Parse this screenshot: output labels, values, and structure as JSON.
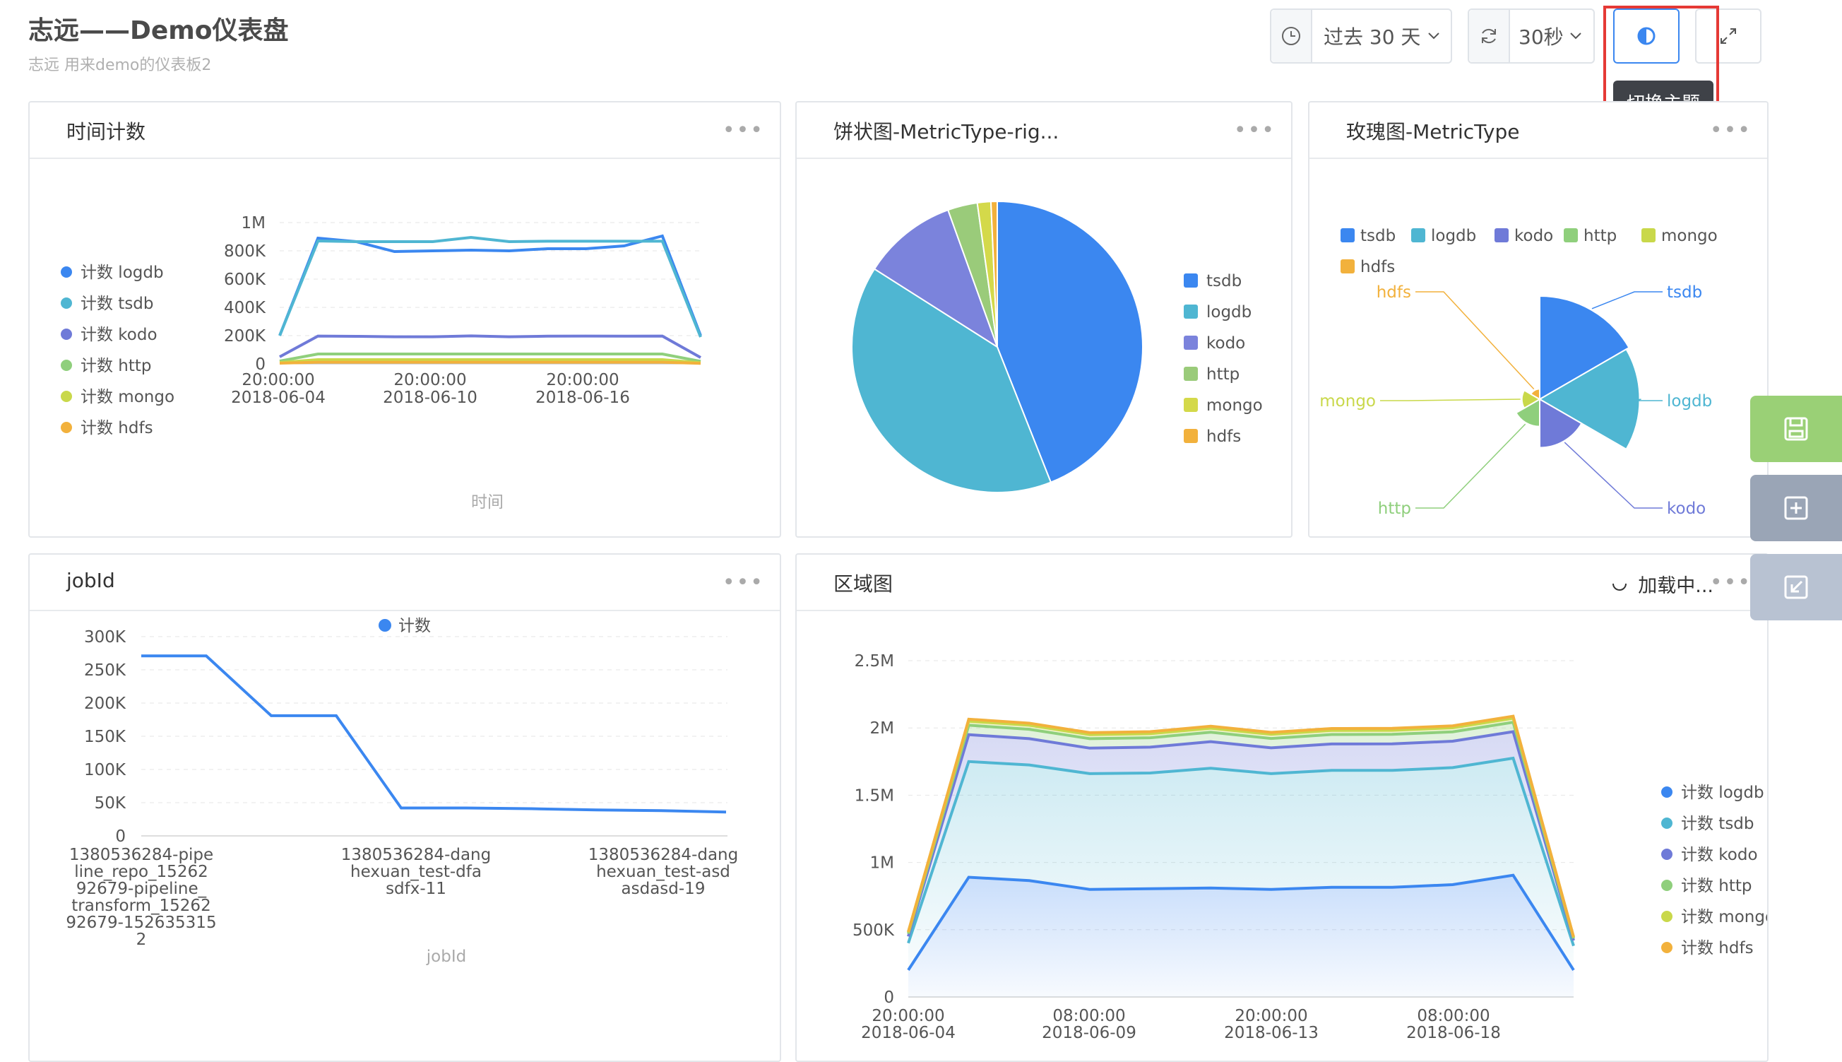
{
  "page": {
    "title": "志远——Demo仪表盘",
    "subtitle": "志远 用来demo的仪表板2"
  },
  "toolbar": {
    "time_range": "过去 30 天",
    "refresh": "30秒",
    "tooltip": "切换主题"
  },
  "cards": {
    "time_count": {
      "title": "时间计数",
      "xlabel": "时间"
    },
    "pie": {
      "title": "饼状图-MetricType-rig..."
    },
    "rose": {
      "title": "玫瑰图-MetricType"
    },
    "jobid": {
      "title": "jobId",
      "xlabel": "jobId"
    },
    "area": {
      "title": "区域图",
      "loading": "加载中..."
    }
  },
  "chart_data": [
    {
      "type": "line",
      "title": "时间计数",
      "xlabel": "时间",
      "x_ticks": [
        "20:00:00\n2018-06-04",
        "20:00:00\n2018-06-10",
        "20:00:00\n2018-06-16"
      ],
      "y_ticks": [
        "0",
        "200K",
        "400K",
        "600K",
        "800K",
        "1M"
      ],
      "ylim": [
        0,
        1000000
      ],
      "grid": true,
      "legend_position": "left",
      "series": [
        {
          "name": "计数 logdb",
          "color": "#3b87f0",
          "values": [
            200000,
            890000,
            865000,
            795000,
            800000,
            805000,
            800000,
            815000,
            815000,
            835000,
            905000,
            200000
          ]
        },
        {
          "name": "计数 tsdb",
          "color": "#4fb6d2",
          "values": [
            200000,
            870000,
            865000,
            865000,
            865000,
            895000,
            865000,
            868000,
            868000,
            868000,
            868000,
            190000
          ]
        },
        {
          "name": "计数 kodo",
          "color": "#6f7ad8",
          "values": [
            50000,
            197000,
            195000,
            192000,
            192000,
            198000,
            192000,
            196000,
            197000,
            196000,
            197000,
            45000
          ]
        },
        {
          "name": "计数 http",
          "color": "#8fcf7c",
          "values": [
            20000,
            70000,
            70000,
            70000,
            70000,
            70000,
            70000,
            70000,
            70000,
            70000,
            70000,
            18000
          ]
        },
        {
          "name": "计数 mongo",
          "color": "#c9d84a",
          "values": [
            10000,
            30000,
            30000,
            30000,
            30000,
            30000,
            30000,
            30000,
            30000,
            30000,
            30000,
            8000
          ]
        },
        {
          "name": "计数 hdfs",
          "color": "#f2b13c",
          "values": [
            5000,
            12000,
            12000,
            12000,
            12000,
            12000,
            12000,
            12000,
            12000,
            12000,
            12000,
            4000
          ]
        }
      ]
    },
    {
      "type": "pie",
      "title": "饼状图-MetricType-rig...",
      "legend_position": "right",
      "slices": [
        {
          "name": "tsdb",
          "value": 44,
          "color": "#3b87f0"
        },
        {
          "name": "logdb",
          "value": 40,
          "color": "#4fb6d2"
        },
        {
          "name": "kodo",
          "value": 10.5,
          "color": "#7b83dc"
        },
        {
          "name": "http",
          "value": 3.3,
          "color": "#9acb7a"
        },
        {
          "name": "mongo",
          "value": 1.5,
          "color": "#d4d94a"
        },
        {
          "name": "hdfs",
          "value": 0.7,
          "color": "#f2b13c"
        }
      ]
    },
    {
      "type": "pie",
      "title": "玫瑰图-MetricType",
      "rose": true,
      "legend_position": "top",
      "slices": [
        {
          "name": "tsdb",
          "value": 100,
          "color": "#3b87f0"
        },
        {
          "name": "logdb",
          "value": 94,
          "color": "#4fb6d2"
        },
        {
          "name": "kodo",
          "value": 22,
          "color": "#6f7ad8"
        },
        {
          "name": "http",
          "value": 7,
          "color": "#8fcf7c"
        },
        {
          "name": "mongo",
          "value": 3,
          "color": "#c9d84a"
        },
        {
          "name": "hdfs",
          "value": 1,
          "color": "#f2b13c"
        }
      ]
    },
    {
      "type": "line",
      "title": "jobId",
      "xlabel": "jobId",
      "legend": [
        "计数"
      ],
      "legend_position": "top",
      "x_ticks": [
        "1380536284-pipe\nline_repo_15262\n92679-pipeline_\ntransform_15262\n92679-152635315\n2",
        "1380536284-dang\nhexuan_test-dfa\nsdfx-11",
        "1380536284-dang\nhexuan_test-asd\nasdasd-19"
      ],
      "y_ticks": [
        "0",
        "50K",
        "100K",
        "150K",
        "200K",
        "250K",
        "300K"
      ],
      "ylim": [
        0,
        300000
      ],
      "grid": true,
      "series": [
        {
          "name": "计数",
          "color": "#3b87f0",
          "values": [
            271000,
            271000,
            181000,
            181000,
            42000,
            42000,
            41000,
            39000,
            38000,
            36000
          ]
        }
      ]
    },
    {
      "type": "area",
      "title": "区域图",
      "stacked": true,
      "x_ticks": [
        "20:00:00\n2018-06-04",
        "08:00:00\n2018-06-09",
        "20:00:00\n2018-06-13",
        "08:00:00\n2018-06-18"
      ],
      "y_ticks": [
        "0",
        "500K",
        "1M",
        "1.5M",
        "2M",
        "2.5M"
      ],
      "ylim": [
        0,
        2500000
      ],
      "grid": true,
      "legend_position": "right",
      "series": [
        {
          "name": "计数 logdb",
          "color": "#3b87f0",
          "values": [
            200000,
            890000,
            865000,
            800000,
            805000,
            810000,
            800000,
            815000,
            815000,
            835000,
            905000,
            200000
          ]
        },
        {
          "name": "计数 tsdb",
          "color": "#4fb6d2",
          "values": [
            200000,
            860000,
            860000,
            860000,
            860000,
            890000,
            860000,
            870000,
            870000,
            870000,
            870000,
            180000
          ]
        },
        {
          "name": "计数 kodo",
          "color": "#6f7ad8",
          "values": [
            50000,
            200000,
            195000,
            190000,
            192000,
            198000,
            192000,
            196000,
            197000,
            196000,
            197000,
            40000
          ]
        },
        {
          "name": "计数 http",
          "color": "#8fcf7c",
          "values": [
            20000,
            70000,
            70000,
            70000,
            70000,
            70000,
            70000,
            70000,
            70000,
            70000,
            70000,
            15000
          ]
        },
        {
          "name": "计数 mongo",
          "color": "#c9d84a",
          "values": [
            10000,
            30000,
            30000,
            30000,
            30000,
            30000,
            30000,
            30000,
            30000,
            30000,
            30000,
            8000
          ]
        },
        {
          "name": "计数 hdfs",
          "color": "#f2b13c",
          "values": [
            5000,
            15000,
            15000,
            15000,
            15000,
            15000,
            15000,
            15000,
            15000,
            15000,
            15000,
            4000
          ]
        }
      ]
    }
  ]
}
